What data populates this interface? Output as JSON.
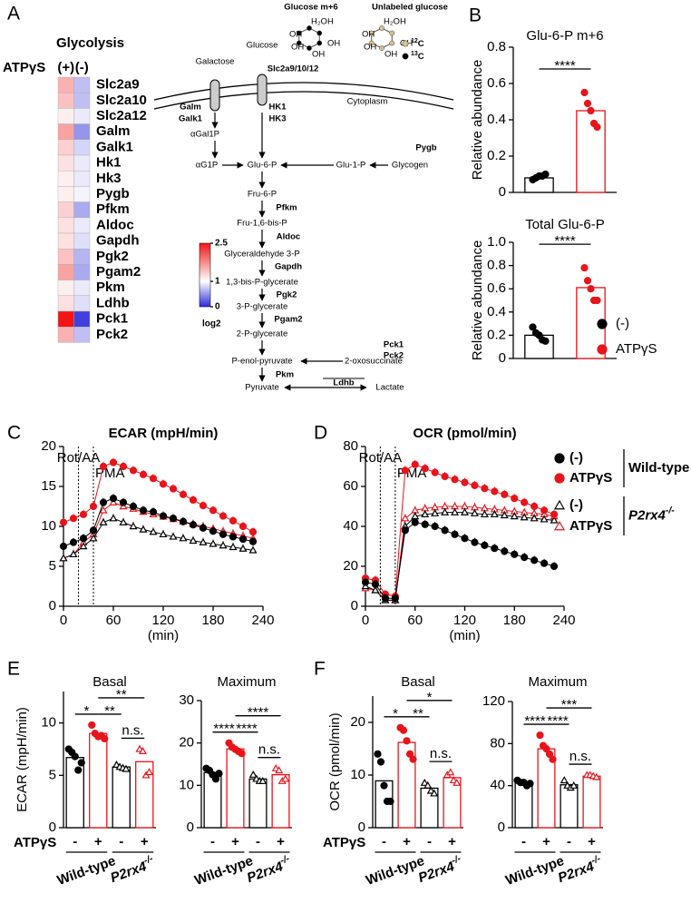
{
  "chart_data": [
    {
      "type": "heatmap",
      "panel": "A",
      "title": "Glycolysis",
      "column_label": "ATPγS",
      "columns": [
        "(+)",
        "(-)"
      ],
      "rows": [
        "Slc2a9",
        "Slc2a10",
        "Slc2a12",
        "Galm",
        "Galk1",
        "Hk1",
        "Hk3",
        "Pygb",
        "Pfkm",
        "Aldoc",
        "Gapdh",
        "Pgk2",
        "Pgam2",
        "Pkm",
        "Ldhb",
        "Pck1",
        "Pck2"
      ],
      "values": [
        [
          1.5,
          0.7
        ],
        [
          1.4,
          0.7
        ],
        [
          1.1,
          0.9
        ],
        [
          1.6,
          0.5
        ],
        [
          1.3,
          0.8
        ],
        [
          1.2,
          0.9
        ],
        [
          1.1,
          0.9
        ],
        [
          1.1,
          0.95
        ],
        [
          1.3,
          0.6
        ],
        [
          1.2,
          0.9
        ],
        [
          1.2,
          0.85
        ],
        [
          1.4,
          0.65
        ],
        [
          1.6,
          0.6
        ],
        [
          1.1,
          0.9
        ],
        [
          1.2,
          0.85
        ],
        [
          2.5,
          0.1
        ],
        [
          1.5,
          0.7
        ]
      ],
      "colorbar": {
        "ticks": [
          0,
          1,
          2.5
        ],
        "colors": [
          "#2b2bd9",
          "#ffffff",
          "#f01616"
        ],
        "label": "log2"
      }
    },
    {
      "type": "dotbar",
      "panel": "B",
      "title": "Glu-6-P m+6",
      "ylabel": "Relative abundance",
      "ylim": [
        0,
        0.8
      ],
      "yticks": [
        0,
        0.2,
        0.4,
        0.6,
        0.8
      ],
      "groups": [
        {
          "name": "(-)",
          "color": "#000000",
          "marker": "circle",
          "filled": true,
          "value": 0.08,
          "points": [
            0.07,
            0.08,
            0.09,
            0.09,
            0.1
          ]
        },
        {
          "name": "ATPγS",
          "color": "#e8141b",
          "marker": "circle",
          "filled": true,
          "value": 0.45,
          "points": [
            0.55,
            0.49,
            0.45,
            0.38,
            0.36
          ]
        }
      ],
      "comparisons": [
        {
          "groups": [
            0,
            1
          ],
          "label": "****"
        }
      ]
    },
    {
      "type": "dotbar",
      "title": "Total Glu-6-P",
      "ylabel": "Relative abundance",
      "ylim": [
        0,
        1
      ],
      "yticks": [
        0,
        0.2,
        0.4,
        0.6,
        0.8,
        {
          "value": 1,
          "label": "1.0"
        }
      ],
      "legend": true,
      "groups": [
        {
          "name": "(-)",
          "color": "#000000",
          "marker": "circle",
          "filled": true,
          "value": 0.2,
          "points": [
            0.27,
            0.22,
            0.2,
            0.16,
            0.15
          ]
        },
        {
          "name": "ATPγS",
          "color": "#e8141b",
          "marker": "circle",
          "filled": true,
          "value": 0.61,
          "points": [
            0.78,
            0.67,
            0.6,
            0.5,
            0.5
          ]
        }
      ],
      "comparisons": [
        {
          "groups": [
            0,
            1
          ],
          "label": "****"
        }
      ]
    },
    {
      "type": "line",
      "panel": "C",
      "title": "ECAR (mpH/min)",
      "xlabel": "(min)",
      "xlim": [
        0,
        240
      ],
      "xticks": [
        0,
        60,
        120,
        180,
        240
      ],
      "ylim": [
        0,
        20
      ],
      "yticks": [
        0,
        5,
        10,
        15,
        20
      ],
      "annotations": [
        {
          "x": 18,
          "label": "Rot/AA"
        },
        {
          "x": 36,
          "label": "PMA"
        }
      ],
      "x": [
        0,
        12,
        24,
        36,
        48,
        60,
        72,
        84,
        96,
        108,
        120,
        132,
        144,
        156,
        168,
        180,
        192,
        204,
        216,
        228
      ],
      "series": [
        {
          "color": "#000000",
          "marker": "circle",
          "filled": true,
          "values": [
            7.5,
            8,
            8.5,
            9.5,
            13,
            13.5,
            13,
            12.5,
            12,
            11.8,
            11.3,
            11,
            10.6,
            10.2,
            9.8,
            9.4,
            9,
            8.7,
            8.4,
            8.1
          ]
        },
        {
          "color": "#e8141b",
          "marker": "circle",
          "filled": true,
          "values": [
            10.5,
            11,
            11.5,
            12.5,
            17.5,
            18,
            17.5,
            17,
            16.5,
            16,
            15.3,
            14.7,
            14,
            13.3,
            12.6,
            12,
            11.3,
            10.7,
            10,
            9.3
          ]
        },
        {
          "color": "#000000",
          "marker": "triangle",
          "filled": false,
          "values": [
            6,
            6.5,
            7.5,
            8.5,
            10.5,
            11,
            10.5,
            10,
            9.6,
            9.3,
            9,
            8.7,
            8.5,
            8.2,
            8,
            7.8,
            7.6,
            7.4,
            7.2,
            7
          ]
        },
        {
          "color": "#e8141b",
          "marker": "triangle",
          "filled": false,
          "values": [
            6,
            6.5,
            8,
            9,
            12,
            13,
            12.5,
            12.2,
            11.8,
            11.5,
            11.2,
            10.9,
            10.6,
            10.3,
            10,
            9.7,
            9.4,
            9.1,
            8.8,
            8.5
          ]
        }
      ]
    },
    {
      "type": "line",
      "panel": "D",
      "title": "OCR (pmol/min)",
      "xlabel": "(min)",
      "xlim": [
        0,
        240
      ],
      "xticks": [
        0,
        60,
        120,
        180,
        240
      ],
      "ylim": [
        0,
        80
      ],
      "yticks": [
        0,
        20,
        40,
        60,
        80
      ],
      "annotations": [
        {
          "x": 18,
          "label": "Rot/AA"
        },
        {
          "x": 36,
          "label": "PMA"
        }
      ],
      "x": [
        0,
        12,
        24,
        36,
        48,
        60,
        72,
        84,
        96,
        108,
        120,
        132,
        144,
        156,
        168,
        180,
        192,
        204,
        216,
        228
      ],
      "series": [
        {
          "name": "(-)",
          "color": "#000000",
          "marker": "circle",
          "filled": true,
          "values": [
            12,
            11,
            4,
            4,
            38,
            42,
            41,
            40,
            38,
            36,
            34,
            32,
            30.5,
            29,
            27.5,
            26,
            24.5,
            23,
            21.5,
            20
          ]
        },
        {
          "name": "ATPγS",
          "color": "#e8141b",
          "marker": "circle",
          "filled": true,
          "values": [
            14,
            13,
            6,
            5,
            68,
            71,
            69,
            67,
            65,
            63.5,
            62,
            60.5,
            59,
            57.5,
            56,
            54,
            52,
            50,
            48,
            46
          ]
        },
        {
          "name": "(-)",
          "color": "#000000",
          "marker": "triangle",
          "filled": false,
          "values": [
            10,
            8,
            3,
            3,
            40,
            45,
            46,
            46.5,
            47,
            47,
            47,
            46.5,
            46,
            46,
            45.5,
            45,
            44.5,
            44,
            43.5,
            43
          ]
        },
        {
          "name": "ATPγS",
          "color": "#e8141b",
          "marker": "triangle",
          "filled": false,
          "values": [
            9,
            8,
            3,
            3,
            44,
            48,
            49,
            49.5,
            50,
            50,
            50,
            49.5,
            49,
            48.5,
            48,
            47.5,
            47,
            46.5,
            46,
            45
          ]
        }
      ],
      "legend_groups": [
        {
          "label": "Wild-type"
        },
        {
          "label": "P2rx4",
          "sup": "-/-",
          "italic": true
        }
      ]
    },
    {
      "type": "dotbar",
      "panel": "E",
      "title": "Basal",
      "ylabel": "ECAR (mpH/min)",
      "treatment_label": "ATPγS",
      "ylim": [
        0,
        13
      ],
      "yticks": [
        0,
        5,
        10
      ],
      "groups": [
        {
          "name": "-",
          "color": "#000000",
          "marker": "circle",
          "filled": true,
          "value": 6.7,
          "points": [
            7.5,
            7.2,
            6.8,
            5.5,
            6.2
          ]
        },
        {
          "name": "+",
          "color": "#e8141b",
          "marker": "circle",
          "filled": true,
          "value": 9,
          "points": [
            9.8,
            9,
            8.7,
            8.8,
            8.5
          ]
        },
        {
          "name": "-",
          "color": "#000000",
          "marker": "triangle",
          "filled": false,
          "value": 5.8,
          "points": [
            6,
            5.8,
            5.7,
            5.6
          ]
        },
        {
          "name": "+",
          "color": "#e8141b",
          "marker": "triangle",
          "filled": false,
          "value": 6.3,
          "points": [
            7.5,
            7.3,
            5,
            5.3
          ]
        }
      ],
      "genotypes": [
        {
          "label": "Wild-type"
        },
        {
          "label": "P2rx4",
          "sup": "-/-",
          "italic": true
        }
      ],
      "comparisons": [
        {
          "groups": [
            0,
            1
          ],
          "label": "*"
        },
        {
          "groups": [
            1,
            2
          ],
          "label": "**"
        },
        {
          "groups": [
            1,
            3
          ],
          "label": "**"
        },
        {
          "groups": [
            2,
            3
          ],
          "label": "n.s."
        }
      ]
    },
    {
      "type": "dotbar",
      "title": "Maximum",
      "ylim": [
        0,
        30
      ],
      "yticks": [
        0,
        10,
        20,
        30
      ],
      "groups": [
        {
          "name": "-",
          "color": "#000000",
          "marker": "circle",
          "filled": true,
          "value": 13,
          "points": [
            14,
            13.5,
            12.5,
            11.5,
            12.8
          ]
        },
        {
          "name": "+",
          "color": "#e8141b",
          "marker": "circle",
          "filled": true,
          "value": 18.6,
          "points": [
            20,
            19,
            18.5,
            18,
            17.5
          ]
        },
        {
          "name": "-",
          "color": "#000000",
          "marker": "triangle",
          "filled": false,
          "value": 11.5,
          "points": [
            12.5,
            11.5,
            11,
            11
          ]
        },
        {
          "name": "+",
          "color": "#e8141b",
          "marker": "triangle",
          "filled": false,
          "value": 12.5,
          "points": [
            14,
            13.5,
            11,
            11.5
          ]
        }
      ],
      "genotypes": [
        {
          "label": "Wild-type"
        },
        {
          "label": "P2rx4",
          "sup": "-/-",
          "italic": true
        }
      ],
      "comparisons": [
        {
          "groups": [
            0,
            1
          ],
          "label": "****"
        },
        {
          "groups": [
            1,
            2
          ],
          "label": "****"
        },
        {
          "groups": [
            1,
            3
          ],
          "label": "****"
        },
        {
          "groups": [
            2,
            3
          ],
          "label": "n.s."
        }
      ]
    },
    {
      "type": "dotbar",
      "panel": "F",
      "title": "Basal",
      "ylabel": "OCR (pmol/min)",
      "treatment_label": "ATPγS",
      "ylim": [
        0,
        25
      ],
      "yticks": [
        0,
        10,
        20
      ],
      "groups": [
        {
          "name": "-",
          "color": "#000000",
          "marker": "circle",
          "filled": true,
          "value": 8.9,
          "points": [
            14,
            12.5,
            8,
            5,
            5
          ]
        },
        {
          "name": "+",
          "color": "#e8141b",
          "marker": "circle",
          "filled": true,
          "value": 16.2,
          "points": [
            19,
            18.5,
            16.5,
            14,
            13
          ]
        },
        {
          "name": "-",
          "color": "#000000",
          "marker": "triangle",
          "filled": false,
          "value": 7.5,
          "points": [
            8.5,
            8,
            7,
            6.5
          ]
        },
        {
          "name": "+",
          "color": "#e8141b",
          "marker": "triangle",
          "filled": false,
          "value": 9.5,
          "points": [
            10,
            10.5,
            9,
            8.5
          ]
        }
      ],
      "genotypes": [
        {
          "label": "Wild-type"
        },
        {
          "label": "P2rx4",
          "sup": "-/-",
          "italic": true
        }
      ],
      "comparisons": [
        {
          "groups": [
            0,
            1
          ],
          "label": "*"
        },
        {
          "groups": [
            1,
            2
          ],
          "label": "**"
        },
        {
          "groups": [
            1,
            3
          ],
          "label": "*"
        },
        {
          "groups": [
            2,
            3
          ],
          "label": "n.s."
        }
      ]
    },
    {
      "type": "dotbar",
      "title": "Maximum",
      "ylim": [
        0,
        120
      ],
      "yticks": [
        0,
        40,
        80,
        120
      ],
      "groups": [
        {
          "name": "-",
          "color": "#000000",
          "marker": "circle",
          "filled": true,
          "value": 42.6,
          "points": [
            45,
            43,
            43,
            40,
            42
          ]
        },
        {
          "name": "+",
          "color": "#e8141b",
          "marker": "circle",
          "filled": true,
          "value": 75,
          "points": [
            88,
            78,
            75,
            70,
            65
          ]
        },
        {
          "name": "-",
          "color": "#000000",
          "marker": "triangle",
          "filled": false,
          "value": 40.8,
          "points": [
            45,
            40,
            38,
            40
          ]
        },
        {
          "name": "+",
          "color": "#e8141b",
          "marker": "triangle",
          "filled": false,
          "value": 49,
          "points": [
            50,
            50,
            49,
            48
          ]
        }
      ],
      "genotypes": [
        {
          "label": "Wild-type"
        },
        {
          "label": "P2rx4",
          "sup": "-/-",
          "italic": true
        }
      ],
      "comparisons": [
        {
          "groups": [
            0,
            1
          ],
          "label": "****"
        },
        {
          "groups": [
            1,
            2
          ],
          "label": "****"
        },
        {
          "groups": [
            1,
            3
          ],
          "label": "***"
        },
        {
          "groups": [
            2,
            3
          ],
          "label": "n.s."
        }
      ]
    }
  ],
  "diagram": {
    "enzyme_color": "#e8141b",
    "labels": [
      {
        "text": "Glucose m+6"
      },
      {
        "text": "Unlabeled glucose"
      },
      {
        "text": "Galactose"
      },
      {
        "text": "Glucose"
      },
      {
        "text": "Slc2a9/10/12",
        "enzyme": true
      },
      {
        "text": "Cytoplasm"
      },
      {
        "text": "Galm",
        "enzyme": true
      },
      {
        "text": "Galk1",
        "enzyme": true
      },
      {
        "text": "αGal1P"
      },
      {
        "text": "HK1",
        "enzyme": true
      },
      {
        "text": "HK3",
        "enzyme": true
      },
      {
        "text": "Pygb",
        "enzyme": true
      },
      {
        "text": "αG1P"
      },
      {
        "text": "Glu-6-P"
      },
      {
        "text": "Glu-1-P"
      },
      {
        "text": "Glycogen"
      },
      {
        "text": "Fru-6-P"
      },
      {
        "text": "Pfkm",
        "enzyme": true
      },
      {
        "text": "Fru-1,6-bis-P"
      },
      {
        "text": "Aldoc",
        "enzyme": true
      },
      {
        "text": "Glyceraldehyde 3-P"
      },
      {
        "text": "Gapdh",
        "enzyme": true
      },
      {
        "text": "1,3-bis-P-glycerate"
      },
      {
        "text": "Pgk2",
        "enzyme": true
      },
      {
        "text": "3-P-glycerate"
      },
      {
        "text": "Pgam2",
        "enzyme": true
      },
      {
        "text": "2-P-glycerate"
      },
      {
        "text": "Pck1",
        "enzyme": true
      },
      {
        "text": "Pck2",
        "enzyme": true
      },
      {
        "text": "P-enol-pyruvate"
      },
      {
        "text": "2-oxosuccinate"
      },
      {
        "text": "Pkm",
        "enzyme": true
      },
      {
        "text": "Pyruvate"
      },
      {
        "text": "Ldhb",
        "enzyme": true
      },
      {
        "text": "Lactate"
      }
    ],
    "molecule_atoms": [
      "H₂OH",
      "OH"
    ],
    "isotopes": [
      {
        "mass": "12",
        "symbol": "C",
        "color": "#d8c58f"
      },
      {
        "mass": "13",
        "symbol": "C",
        "color": "#000000"
      }
    ]
  }
}
